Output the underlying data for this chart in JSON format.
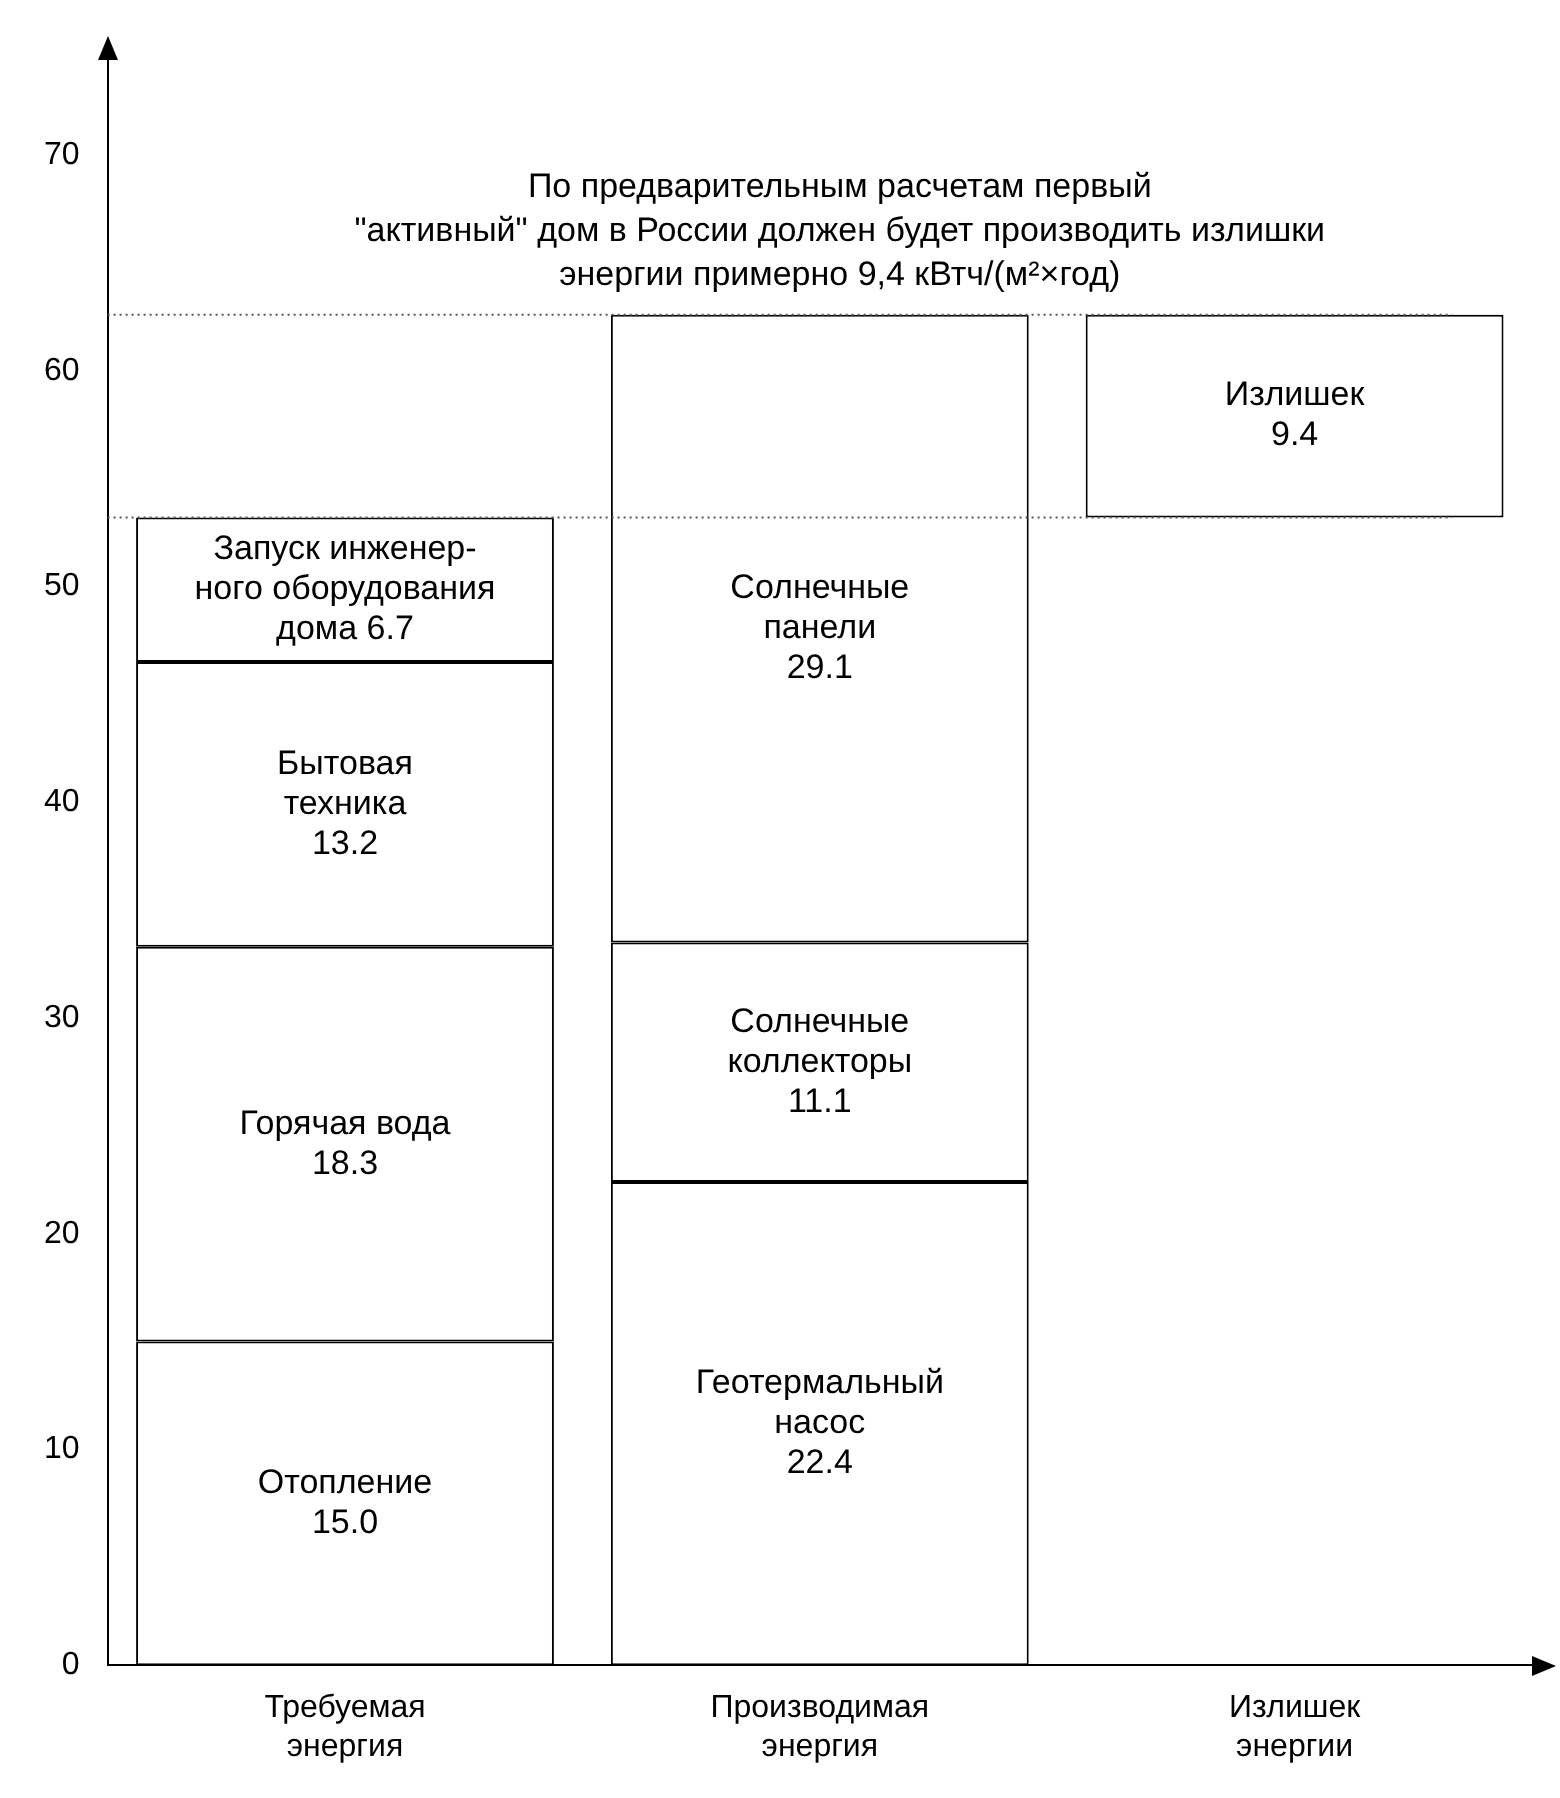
{
  "chart_data": {
    "type": "bar",
    "categories": [
      "Требуемая энергия",
      "Производимая энергия",
      "Излишек энергии"
    ],
    "series": [
      {
        "name": "Отопление",
        "color": "#ffffff",
        "values": [
          15.0,
          null,
          null
        ],
        "base": [
          0,
          null,
          null
        ],
        "value_labels": [
          "15.0",
          null,
          null
        ]
      },
      {
        "name": "Горячая вода",
        "color": "#ffffff",
        "values": [
          18.3,
          null,
          null
        ],
        "base": [
          15.0,
          null,
          null
        ],
        "value_labels": [
          "18.3",
          null,
          null
        ]
      },
      {
        "name": "Бытовая\nтехника",
        "color": "#ffffff",
        "values": [
          13.2,
          null,
          null
        ],
        "base": [
          33.3,
          null,
          null
        ],
        "value_labels": [
          "13.2",
          null,
          null
        ]
      },
      {
        "name": "Запуск инженер-\nного оборудования\nдома",
        "color": "#ffffff",
        "values": [
          6.7,
          null,
          null
        ],
        "base": [
          46.5,
          null,
          null
        ],
        "value_labels": [
          "6.7",
          null,
          null
        ]
      },
      {
        "name": "Геотермальный\nнасос",
        "color": "#ffffff",
        "values": [
          null,
          22.4,
          null
        ],
        "base": [
          null,
          0,
          null
        ],
        "value_labels": [
          null,
          "22.4",
          null
        ]
      },
      {
        "name": "Солнечные\nколлекторы",
        "color": "#ffffff",
        "values": [
          null,
          11.1,
          null
        ],
        "base": [
          null,
          22.4,
          null
        ],
        "value_labels": [
          null,
          "11.1",
          null
        ]
      },
      {
        "name": "Солнечные\nпанели",
        "color": "#ffffff",
        "values": [
          null,
          29.1,
          null
        ],
        "base": [
          null,
          33.5,
          null
        ],
        "value_labels": [
          null,
          "29.1",
          null
        ]
      },
      {
        "name": "Излишек",
        "color": "#ffffff",
        "values": [
          null,
          null,
          9.4
        ],
        "base": [
          null,
          null,
          53.2
        ],
        "value_labels": [
          null,
          null,
          "9.4"
        ]
      }
    ],
    "ylim": [
      0,
      75
    ],
    "yticks": [
      0,
      10,
      20,
      30,
      40,
      50,
      60,
      70
    ],
    "grid": false,
    "legend": false,
    "ref_lines": [
      {
        "axis": "y",
        "value": 53.2,
        "line_style": "dotted",
        "color": "#555555"
      },
      {
        "axis": "y",
        "value": 62.6,
        "line_style": "dotted",
        "color": "#555555"
      }
    ],
    "annotations": [
      "По предварительным расчетам первый\n\"активный\" дом в России должен будет производить излишки\nэнергии примерно 9,4 кВтч/(м²×год)"
    ]
  }
}
